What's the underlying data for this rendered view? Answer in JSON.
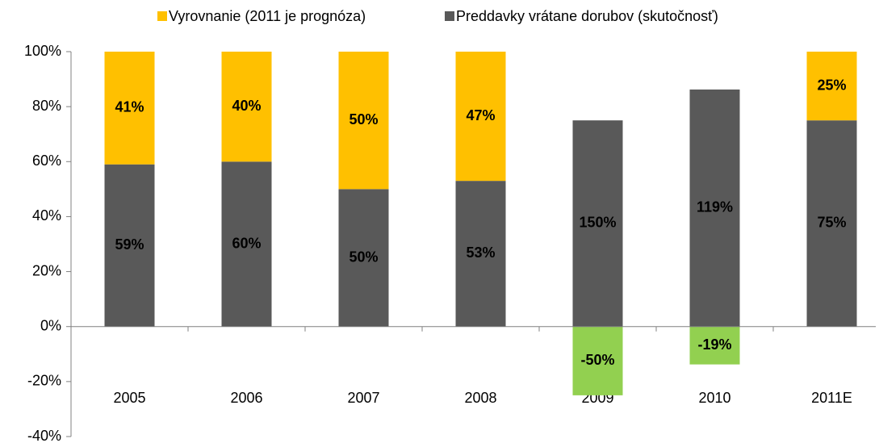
{
  "chart_data": {
    "type": "bar",
    "stacking": "percent",
    "categories": [
      "2005",
      "2006",
      "2007",
      "2008",
      "2009",
      "2010",
      "2011E"
    ],
    "series": [
      {
        "name": "Preddavky vrátane dorubov (skutočnosť)",
        "color": "#595959",
        "negative_color": "#92d050",
        "values": [
          59,
          60,
          50,
          53,
          150,
          119,
          75
        ],
        "value_labels": [
          "59%",
          "60%",
          "50%",
          "53%",
          "150%",
          "119%",
          "75%"
        ]
      },
      {
        "name": "Vyrovnanie (2011 je prognóza)",
        "color": "#ffc000",
        "negative_color": "#92d050",
        "values": [
          41,
          40,
          50,
          47,
          -50,
          -19,
          25
        ],
        "value_labels": [
          "41%",
          "40%",
          "50%",
          "47%",
          "-50%",
          "-19%",
          "25%"
        ]
      }
    ],
    "legend_order": [
      1,
      0
    ],
    "ylim": [
      -40,
      100
    ],
    "yticks": [
      {
        "value": -40,
        "label": "-40%"
      },
      {
        "value": -20,
        "label": "-20%"
      },
      {
        "value": 0,
        "label": "0%"
      },
      {
        "value": 20,
        "label": "20%"
      },
      {
        "value": 40,
        "label": "40%"
      },
      {
        "value": 60,
        "label": "60%"
      },
      {
        "value": 80,
        "label": "80%"
      },
      {
        "value": 100,
        "label": "100%"
      }
    ],
    "grid": false,
    "legend": "top"
  }
}
